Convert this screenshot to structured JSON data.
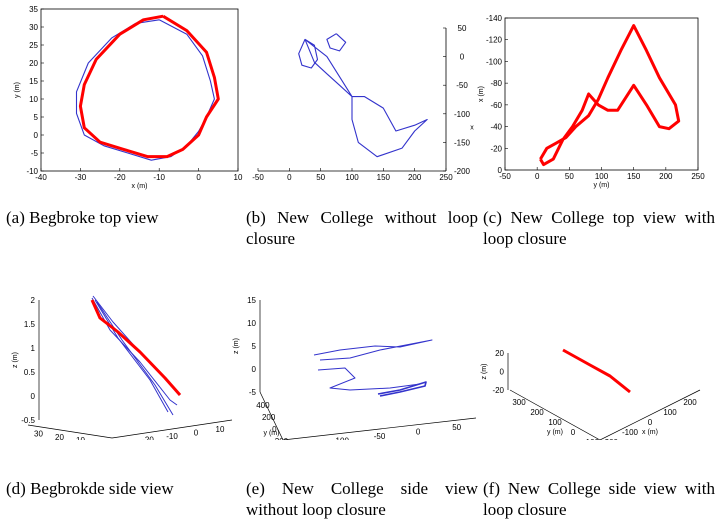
{
  "captions": [
    {
      "label": "(a)",
      "text": "Begbroke top view"
    },
    {
      "label": "(b)",
      "text": "New College without loop closure"
    },
    {
      "label": "(c)",
      "text": "New College top view with loop closure"
    },
    {
      "label": "(d)",
      "text": "Begbrokde side view"
    },
    {
      "label": "(e)",
      "text": "New College side view without loop closure"
    },
    {
      "label": "(f)",
      "text": "New College side view with loop closure"
    }
  ],
  "chart_data": [
    {
      "type": "line",
      "panel": "a",
      "xlabel": "x (m)",
      "ylabel": "y (m)",
      "xlim": [
        -40,
        10
      ],
      "ylim": [
        -10,
        35
      ],
      "xticks": [
        -40,
        -30,
        -20,
        -10,
        0,
        10
      ],
      "yticks": [
        -10,
        -5,
        0,
        5,
        10,
        15,
        20,
        25,
        30,
        35
      ],
      "series": [
        {
          "color": "#3333cc",
          "x": [
            -10,
            -3,
            1,
            3,
            4,
            2,
            0,
            -3,
            -7,
            -12,
            -18,
            -24,
            -29,
            -31,
            -31,
            -28,
            -22,
            -16,
            -10
          ],
          "y": [
            32,
            28,
            22,
            15,
            10,
            5,
            1,
            -3,
            -6,
            -7,
            -5,
            -3,
            0,
            6,
            12,
            20,
            27,
            31,
            32
          ]
        },
        {
          "color": "#ff0000",
          "x": [
            -9,
            -3,
            2,
            4,
            5,
            2,
            0,
            -4,
            -8,
            -13,
            -19,
            -25,
            -29,
            -30,
            -29,
            -26,
            -20,
            -14,
            -9
          ],
          "y": [
            33,
            29,
            23,
            16,
            10,
            5,
            0,
            -4,
            -6,
            -6,
            -4,
            -2,
            2,
            8,
            14,
            21,
            28,
            32,
            33
          ]
        }
      ]
    },
    {
      "type": "line",
      "panel": "b",
      "xlabel": "",
      "ylabel": "x",
      "xlim": [
        -50,
        250
      ],
      "ylim": [
        -200,
        50
      ],
      "xticks": [
        -50,
        0,
        50,
        100,
        150,
        200,
        250
      ],
      "yticks": [
        -200,
        -150,
        -100,
        -50,
        0,
        50
      ],
      "series": [
        {
          "color": "#3333cc",
          "x": [
            25,
            40,
            45,
            35,
            20,
            15,
            25,
            60,
            100,
            100,
            110,
            140,
            180,
            200,
            220,
            200,
            170,
            150,
            120,
            100,
            80,
            60,
            40,
            25
          ],
          "y": [
            30,
            20,
            -5,
            -20,
            -15,
            5,
            30,
            0,
            -70,
            -110,
            -150,
            -175,
            -160,
            -130,
            -110,
            -120,
            -130,
            -90,
            -70,
            -70,
            -50,
            -30,
            -10,
            30
          ]
        },
        {
          "color": "#3333cc",
          "x": [
            75,
            90,
            80,
            65,
            60,
            75
          ],
          "y": [
            40,
            25,
            10,
            15,
            30,
            40
          ]
        }
      ]
    },
    {
      "type": "line",
      "panel": "c",
      "xlabel": "y (m)",
      "ylabel": "x (m)",
      "xlim": [
        -50,
        250
      ],
      "ylim": [
        0,
        -140
      ],
      "xticks": [
        -50,
        0,
        50,
        100,
        150,
        200,
        250
      ],
      "yticks": [
        -140,
        -120,
        -100,
        -80,
        -60,
        -40,
        -20,
        0
      ],
      "series": [
        {
          "color": "#ff0000",
          "x": [
            5,
            15,
            30,
            45,
            60,
            80,
            95,
            110,
            130,
            150,
            170,
            190,
            215,
            220,
            205,
            190,
            170,
            150,
            125,
            110,
            95,
            80,
            70,
            55,
            40,
            25,
            10,
            5
          ],
          "y": [
            -10,
            -20,
            -25,
            -30,
            -40,
            -50,
            -65,
            -85,
            -110,
            -133,
            -110,
            -85,
            -60,
            -45,
            -38,
            -40,
            -60,
            -78,
            -55,
            -55,
            -60,
            -70,
            -55,
            -40,
            -28,
            -10,
            -5,
            -10
          ]
        }
      ]
    },
    {
      "type": "line",
      "panel": "d",
      "xlabel": "x (m)",
      "ylabel": "z (m)",
      "zlabel": "y (m)",
      "x_ticks": [
        -30,
        -20,
        -10,
        0,
        10
      ],
      "y_ticks": [
        0,
        10,
        20,
        30
      ],
      "z_ticks": [
        -0.5,
        0,
        0.5,
        1,
        1.5,
        2
      ],
      "series": [
        {
          "color": "#3333cc"
        },
        {
          "color": "#ff0000"
        }
      ]
    },
    {
      "type": "line",
      "panel": "e",
      "xlabel": "x (m)",
      "ylabel": "z (m)",
      "zlabel": "y (m)",
      "x_ticks": [
        -150,
        -100,
        -50,
        0,
        50
      ],
      "y_ticks": [
        -200,
        0,
        200,
        400
      ],
      "z_ticks": [
        -5,
        0,
        5,
        10,
        15
      ],
      "series": [
        {
          "color": "#3333cc"
        }
      ]
    },
    {
      "type": "line",
      "panel": "f",
      "xlabel": "x (m)",
      "ylabel": "z (m)",
      "zlabel": "y (m)",
      "x_ticks": [
        -200,
        -100,
        0,
        100,
        200
      ],
      "y_ticks": [
        -100,
        0,
        100,
        200,
        300
      ],
      "z_ticks": [
        -20,
        0,
        20
      ],
      "series": [
        {
          "color": "#ff0000"
        }
      ]
    }
  ]
}
